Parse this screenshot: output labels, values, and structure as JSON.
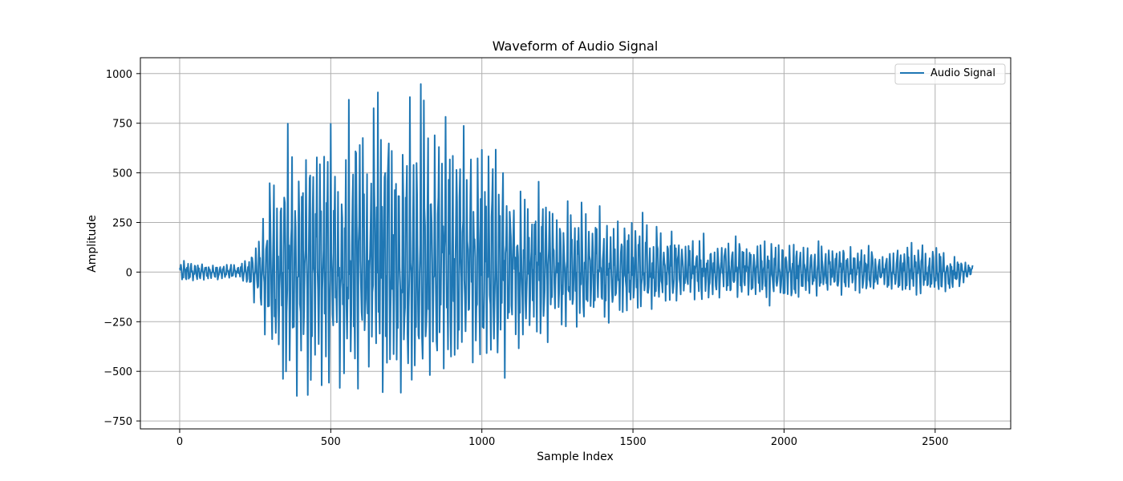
{
  "chart_data": {
    "type": "line",
    "title": "Waveform of Audio Signal",
    "xlabel": "Sample Index",
    "ylabel": "Amplitude",
    "xlim": [
      -130,
      2750
    ],
    "ylim": [
      -790,
      1080
    ],
    "xticks": [
      0,
      500,
      1000,
      1500,
      2000,
      2500
    ],
    "yticks": [
      -750,
      -500,
      -250,
      0,
      250,
      500,
      750,
      1000
    ],
    "xtick_labels": [
      "0",
      "500",
      "1000",
      "1500",
      "2000",
      "2500"
    ],
    "ytick_labels": [
      "−750",
      "−500",
      "−250",
      "0",
      "250",
      "500",
      "750",
      "1000"
    ],
    "grid": true,
    "legend": {
      "position": "top-right"
    },
    "series": [
      {
        "name": "Audio Signal",
        "color": "#1f77b4",
        "num_samples": 2625,
        "envelope": [
          {
            "x": 0,
            "max": 60,
            "min": -70
          },
          {
            "x": 100,
            "max": 45,
            "min": -45
          },
          {
            "x": 200,
            "max": 45,
            "min": -35
          },
          {
            "x": 260,
            "max": 160,
            "min": -190
          },
          {
            "x": 280,
            "max": 450,
            "min": -360
          },
          {
            "x": 340,
            "max": 760,
            "min": -640
          },
          {
            "x": 400,
            "max": 720,
            "min": -620
          },
          {
            "x": 470,
            "max": 760,
            "min": -640
          },
          {
            "x": 520,
            "max": 840,
            "min": -650
          },
          {
            "x": 600,
            "max": 900,
            "min": -600
          },
          {
            "x": 660,
            "max": 1000,
            "min": -620
          },
          {
            "x": 720,
            "max": 990,
            "min": -610
          },
          {
            "x": 780,
            "max": 960,
            "min": -600
          },
          {
            "x": 840,
            "max": 945,
            "min": -700
          },
          {
            "x": 900,
            "max": 870,
            "min": -520
          },
          {
            "x": 980,
            "max": 790,
            "min": -450
          },
          {
            "x": 1030,
            "max": 780,
            "min": -560
          },
          {
            "x": 1100,
            "max": 570,
            "min": -520
          },
          {
            "x": 1200,
            "max": 440,
            "min": -400
          },
          {
            "x": 1300,
            "max": 360,
            "min": -300
          },
          {
            "x": 1400,
            "max": 330,
            "min": -270
          },
          {
            "x": 1500,
            "max": 300,
            "min": -200
          },
          {
            "x": 1600,
            "max": 300,
            "min": -180
          },
          {
            "x": 1700,
            "max": 200,
            "min": -160
          },
          {
            "x": 1800,
            "max": 200,
            "min": -150
          },
          {
            "x": 1900,
            "max": 180,
            "min": -140
          },
          {
            "x": 2000,
            "max": 170,
            "min": -200
          },
          {
            "x": 2100,
            "max": 170,
            "min": -120
          },
          {
            "x": 2300,
            "max": 140,
            "min": -110
          },
          {
            "x": 2480,
            "max": 170,
            "min": -120
          },
          {
            "x": 2560,
            "max": 80,
            "min": -110
          },
          {
            "x": 2625,
            "max": 40,
            "min": -20
          }
        ]
      }
    ]
  }
}
